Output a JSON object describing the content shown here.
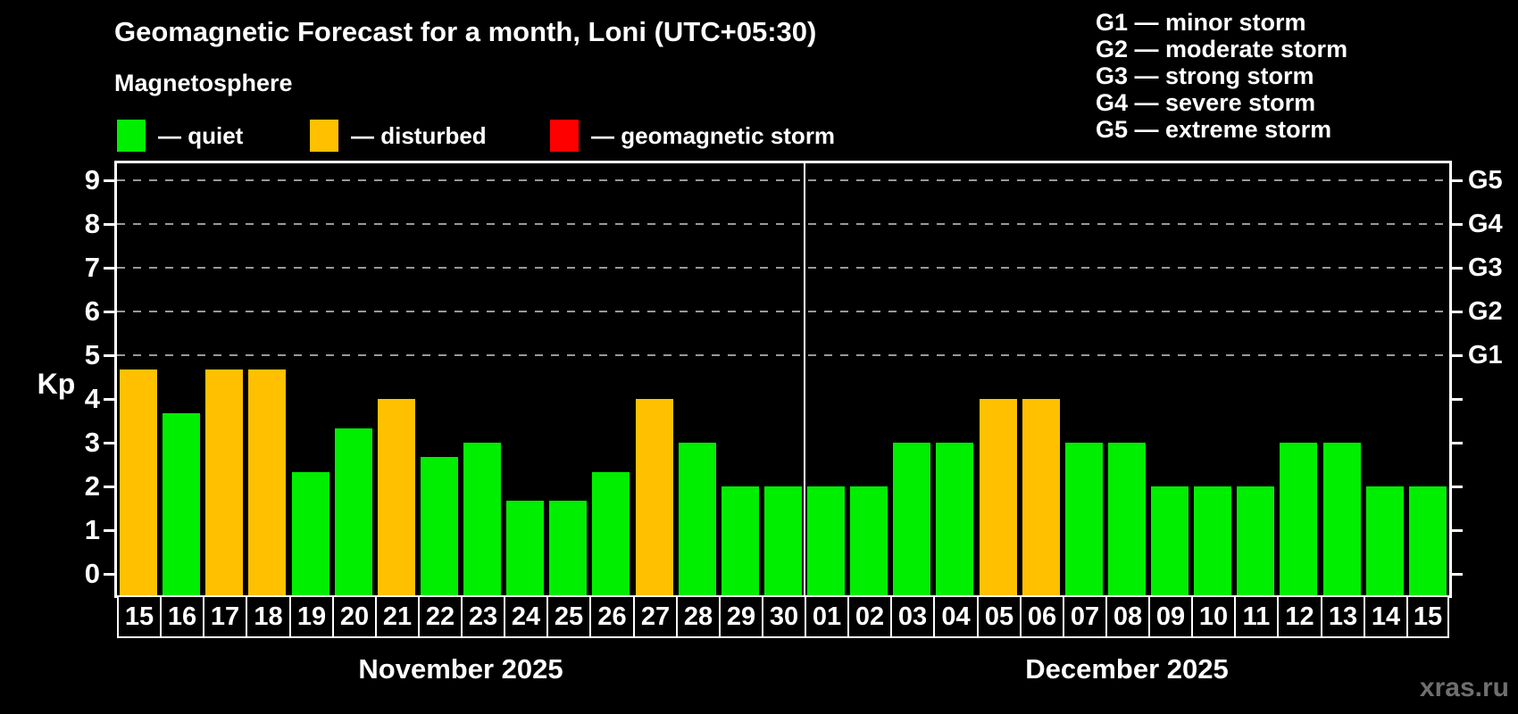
{
  "title": "Geomagnetic Forecast for a month, Loni (UTC+05:30)",
  "subtitle": "Magnetosphere",
  "watermark": "xras.ru",
  "legend": [
    {
      "name": "quiet",
      "label": "— quiet",
      "color": "#00ee00",
      "x": 131
    },
    {
      "name": "disturbed",
      "label": "— disturbed",
      "color": "#ffc000",
      "x": 347
    },
    {
      "name": "storm",
      "label": "— geomagnetic storm",
      "color": "#ff0000",
      "x": 616
    }
  ],
  "storm_scale": [
    "G1 — minor storm",
    "G2 — moderate storm",
    "G3 — strong storm",
    "G4 — severe storm",
    "G5 — extreme storm"
  ],
  "axis": {
    "ylabel": "Kp",
    "yticks": [
      0,
      1,
      2,
      3,
      4,
      5,
      6,
      7,
      8,
      9
    ],
    "gridline_levels": [
      5,
      6,
      7,
      8,
      9
    ],
    "right_labels": [
      {
        "kp": 5,
        "label": "G1"
      },
      {
        "kp": 6,
        "label": "G2"
      },
      {
        "kp": 7,
        "label": "G3"
      },
      {
        "kp": 8,
        "label": "G4"
      },
      {
        "kp": 9,
        "label": "G5"
      }
    ]
  },
  "chart_data": {
    "type": "bar",
    "title": "Geomagnetic Forecast for a month, Loni (UTC+05:30)",
    "xlabel": "",
    "ylabel": "Kp",
    "ylim": [
      0,
      9
    ],
    "grid": "dashed horizontal at Kp 5-9",
    "legend_position": "top-left",
    "status_colors": {
      "quiet": "#00ee00",
      "disturbed": "#ffc000",
      "storm": "#ff0000"
    },
    "groups": [
      {
        "month": "November 2025",
        "days": [
          "15",
          "16",
          "17",
          "18",
          "19",
          "20",
          "21",
          "22",
          "23",
          "24",
          "25",
          "26",
          "27",
          "28",
          "29",
          "30"
        ],
        "values": [
          4.67,
          3.67,
          4.67,
          4.67,
          2.33,
          3.33,
          4.0,
          2.67,
          3.0,
          1.67,
          1.67,
          2.33,
          4.0,
          3.0,
          2.0,
          2.0
        ],
        "status": [
          "disturbed",
          "quiet",
          "disturbed",
          "disturbed",
          "quiet",
          "quiet",
          "disturbed",
          "quiet",
          "quiet",
          "quiet",
          "quiet",
          "quiet",
          "disturbed",
          "quiet",
          "quiet",
          "quiet"
        ]
      },
      {
        "month": "December 2025",
        "days": [
          "01",
          "02",
          "03",
          "04",
          "05",
          "06",
          "07",
          "08",
          "09",
          "10",
          "11",
          "12",
          "13",
          "14",
          "15"
        ],
        "values": [
          2.0,
          2.0,
          3.0,
          3.0,
          4.0,
          4.0,
          3.0,
          3.0,
          2.0,
          2.0,
          2.0,
          3.0,
          3.0,
          2.0,
          2.0
        ],
        "status": [
          "quiet",
          "quiet",
          "quiet",
          "quiet",
          "disturbed",
          "disturbed",
          "quiet",
          "quiet",
          "quiet",
          "quiet",
          "quiet",
          "quiet",
          "quiet",
          "quiet",
          "quiet"
        ]
      }
    ]
  }
}
